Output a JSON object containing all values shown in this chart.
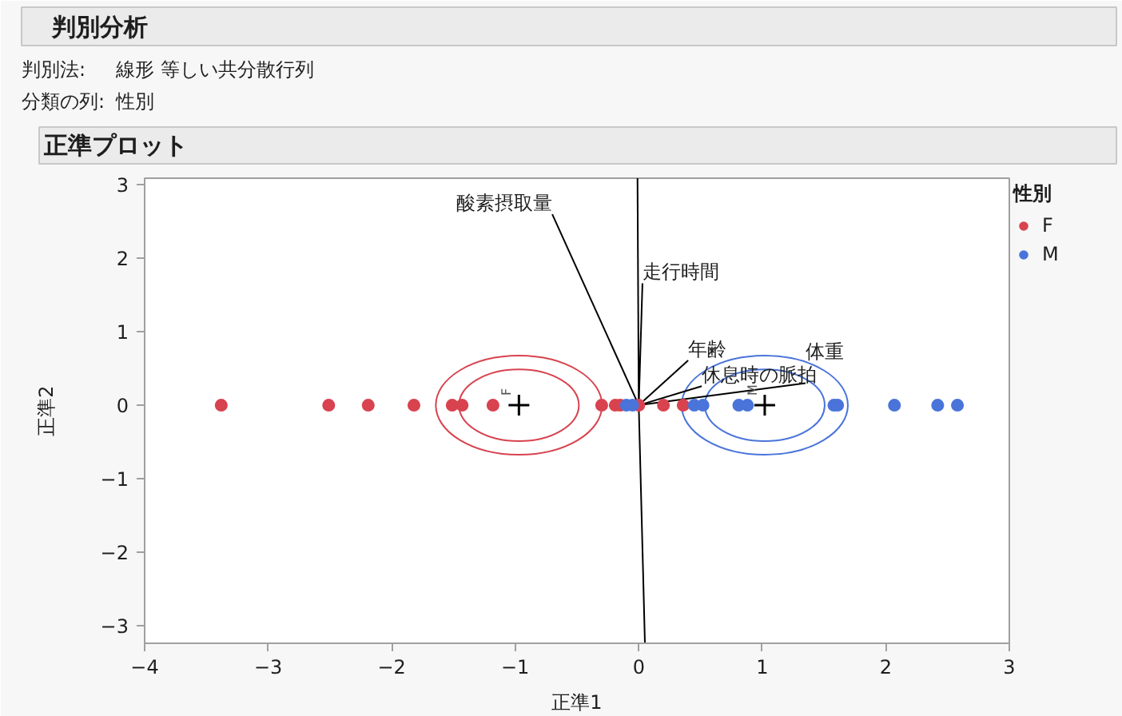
{
  "chart_data": {
    "type": "scatter",
    "title": "判別分析",
    "subtitle": "正準プロット",
    "annotations": [
      "判別法:",
      "線形 等しい共分散行列",
      "分類の列:",
      "性別",
      {
        "text": "F",
        "x": -0.97,
        "y": 0
      },
      {
        "text": "M",
        "x": 1.02,
        "y": 0
      }
    ],
    "xlabel": "正準1",
    "ylabel": "正準2",
    "legend_title": "性別",
    "legend": "top right",
    "xlim": [
      -4,
      3
    ],
    "ylim": [
      -3.24,
      3.09
    ],
    "xticks": [
      -4,
      -3,
      -2,
      -1,
      0,
      1,
      2,
      3
    ],
    "yticks": [
      -3,
      -2,
      -1,
      0,
      1,
      2,
      3
    ],
    "series": [
      {
        "type": "line",
        "name": "酸素摂取量",
        "color": "#000000",
        "x": [
          0,
          -0.7
        ],
        "values": [
          0,
          2.6
        ]
      },
      {
        "type": "line",
        "name": "走行時間",
        "color": "#000000",
        "x": [
          0,
          0.03
        ],
        "values": [
          0,
          1.66
        ]
      },
      {
        "type": "line",
        "name": "年齢",
        "color": "#000000",
        "x": [
          0,
          0.4
        ],
        "values": [
          0,
          0.61
        ]
      },
      {
        "type": "line",
        "name": "休息時の脈拍",
        "color": "#000000",
        "x": [
          0,
          0.51
        ],
        "values": [
          0,
          0.26
        ]
      },
      {
        "type": "line",
        "name": "体重",
        "color": "#000000",
        "x": [
          0,
          1.35
        ],
        "values": [
          0,
          0.3
        ]
      },
      {
        "type": "line",
        "color": "#000000",
        "x": [
          0,
          -0.01
        ],
        "values": [
          0,
          3.09
        ]
      },
      {
        "type": "line",
        "color": "#000000",
        "x": [
          0,
          0.05
        ],
        "values": [
          0,
          -3.24
        ]
      },
      {
        "name": "F",
        "color": "#d8434f",
        "marker": "circle",
        "x": [
          -3.38,
          -2.51,
          -2.19,
          -1.82,
          -1.51,
          -1.43,
          -1.18,
          -0.3,
          -0.19,
          -0.15,
          0.0,
          0.2,
          0.36
        ],
        "values": [
          0,
          0,
          0,
          0,
          0,
          0,
          0,
          0,
          0,
          0,
          0,
          0,
          0
        ]
      },
      {
        "name": "M",
        "color": "#4a74da",
        "marker": "circle",
        "x": [
          -0.1,
          -0.05,
          0.45,
          0.52,
          0.81,
          0.88,
          1.58,
          1.61,
          2.07,
          2.42,
          2.58
        ],
        "values": [
          0,
          0,
          0,
          0,
          0,
          0,
          0,
          0,
          0,
          0,
          0
        ]
      },
      {
        "type": "scatter",
        "marker": "cross",
        "color": "#000000",
        "x": [
          -0.97,
          1.02
        ],
        "values": [
          0,
          0
        ]
      }
    ]
  }
}
